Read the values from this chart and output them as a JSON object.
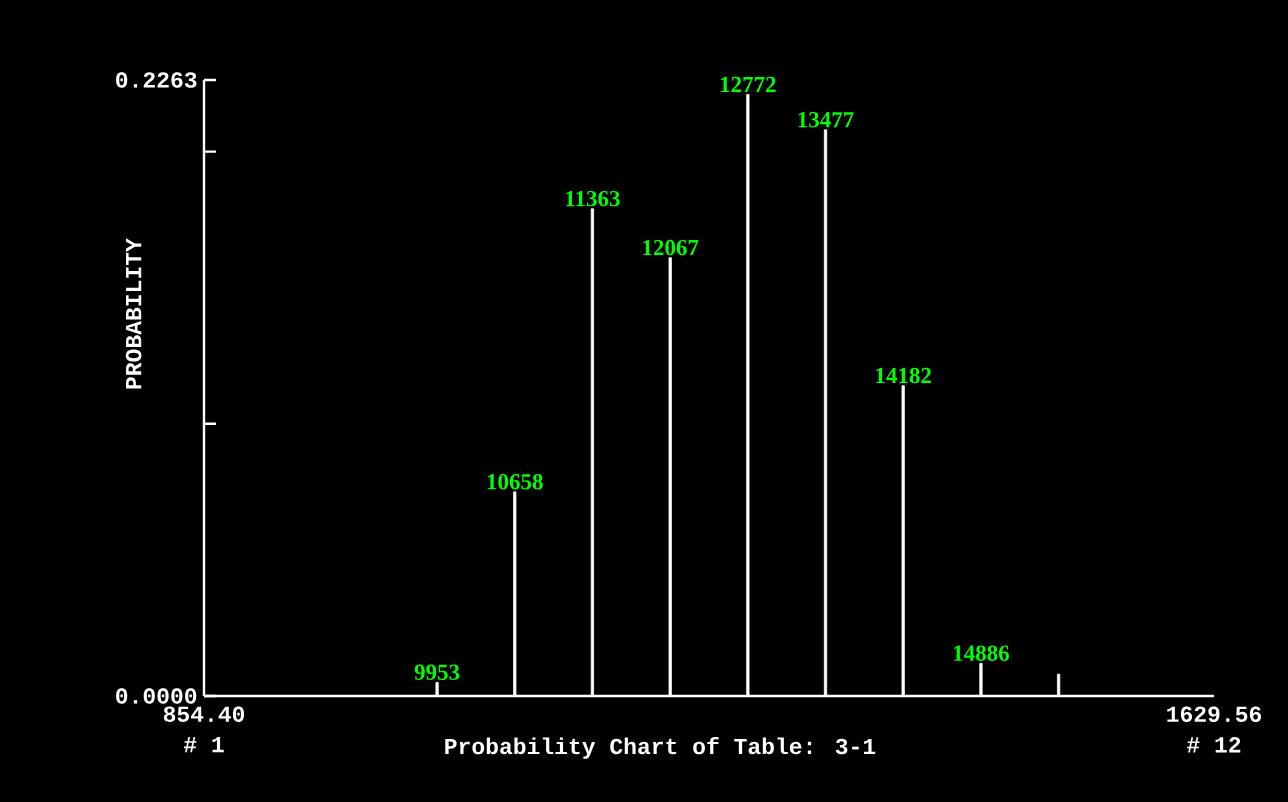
{
  "chart_data": {
    "type": "bar",
    "title": "Probability Chart of Table: 3-1",
    "ylabel": "PROBABILITY",
    "x": [
      1033.3,
      1092.9,
      1152.5,
      1212.2,
      1271.8,
      1331.4,
      1391.0,
      1450.7,
      1510.3
    ],
    "values": [
      0.005,
      0.075,
      0.179,
      0.161,
      0.221,
      0.208,
      0.114,
      0.012,
      0.008
    ],
    "color": "#ffffff",
    "xlim": [
      854.4,
      1629.56
    ],
    "xticks": [
      {
        "value": 854.4,
        "label": "854.40"
      },
      {
        "value": 1629.56,
        "label": "1629.56"
      }
    ],
    "ylim": [
      0,
      0.2263
    ],
    "yticks": [
      {
        "value": 0,
        "label": "0.0000"
      },
      {
        "value": 0.1,
        "label": null
      },
      {
        "value": 0.2,
        "label": null
      },
      {
        "value": 0.2263,
        "label": "0.2263"
      }
    ],
    "annotations": [
      {
        "text": "9953",
        "x": 1033.3,
        "y": 0.005
      },
      {
        "text": "10658",
        "x": 1092.9,
        "y": 0.075
      },
      {
        "text": "11363",
        "x": 1152.5,
        "y": 0.179
      },
      {
        "text": "12067",
        "x": 1212.2,
        "y": 0.161
      },
      {
        "text": "12772",
        "x": 1271.8,
        "y": 0.221
      },
      {
        "text": "13477",
        "x": 1331.4,
        "y": 0.208
      },
      {
        "text": "14182",
        "x": 1391.0,
        "y": 0.114
      },
      {
        "text": "14886",
        "x": 1450.7,
        "y": 0.012
      },
      "# 1",
      "# 12"
    ]
  }
}
